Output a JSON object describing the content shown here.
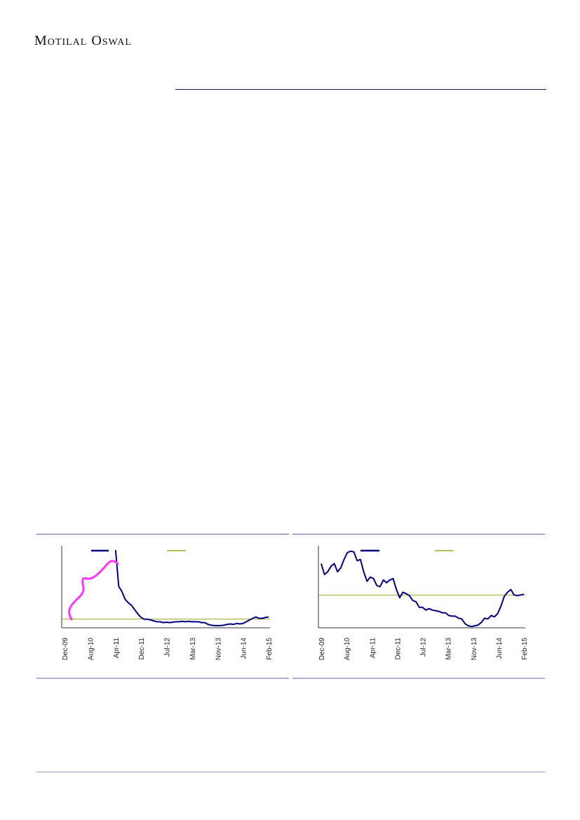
{
  "header": {
    "brand": "Motilal Oswal"
  },
  "charts": {
    "left": {
      "chart_data": {
        "type": "line",
        "x_tick_labels": [
          "Dec-09",
          "Aug-10",
          "Apr-11",
          "Dec-11",
          "Jul-12",
          "Mar-13",
          "Nov-13",
          "Jun-14",
          "Feb-15"
        ],
        "series": [
          {
            "values": [
              null,
              null,
              null,
              null,
              null,
              null,
              null,
              null,
              null,
              null,
              null,
              null,
              null,
              null,
              null,
              null,
              12.0,
              7.8,
              7.2,
              6.3,
              5.9,
              5.6,
              5.1,
              4.6,
              4.2,
              4.0,
              4.0,
              3.9,
              3.8,
              3.7,
              3.7,
              3.6,
              3.65,
              3.6,
              3.65,
              3.7,
              3.7,
              3.75,
              3.7,
              3.75,
              3.7,
              3.7,
              3.7,
              3.6,
              3.6,
              3.4,
              3.3,
              3.25,
              3.25,
              3.25,
              3.3,
              3.4,
              3.45,
              3.4,
              3.5,
              3.45,
              3.5,
              3.7,
              3.9,
              4.1,
              4.25,
              4.1,
              4.1,
              4.2,
              4.25
            ],
            "color": "#000080"
          },
          {
            "values": [
              4.0,
              4.0
            ],
            "color": "#99aa22"
          }
        ],
        "annotation_color": "#ff33ff"
      }
    },
    "right": {
      "chart_data": {
        "type": "line",
        "x_tick_labels": [
          "Dec-09",
          "Aug-10",
          "Apr-11",
          "Dec-11",
          "Jul-12",
          "Mar-13",
          "Nov-13",
          "Jun-14",
          "Feb-15"
        ],
        "series": [
          {
            "values": [
              8.7,
              7.9,
              8.1,
              8.5,
              8.7,
              8.1,
              8.4,
              9.0,
              9.5,
              9.6,
              9.55,
              8.9,
              9.0,
              8.1,
              7.4,
              7.7,
              7.6,
              7.1,
              7.0,
              7.5,
              7.3,
              7.5,
              7.6,
              6.8,
              6.2,
              6.6,
              6.5,
              6.35,
              6.0,
              5.9,
              5.5,
              5.5,
              5.3,
              5.4,
              5.3,
              5.25,
              5.2,
              5.1,
              5.1,
              4.9,
              4.85,
              4.85,
              4.7,
              4.65,
              4.3,
              4.15,
              4.1,
              4.15,
              4.2,
              4.4,
              4.7,
              4.65,
              4.9,
              4.8,
              5.05,
              5.6,
              6.3,
              6.6,
              6.8,
              6.4,
              6.35,
              6.4,
              6.45
            ],
            "color": "#000080"
          },
          {
            "values": [
              6.4,
              6.4
            ],
            "color": "#99aa22"
          }
        ]
      }
    }
  }
}
